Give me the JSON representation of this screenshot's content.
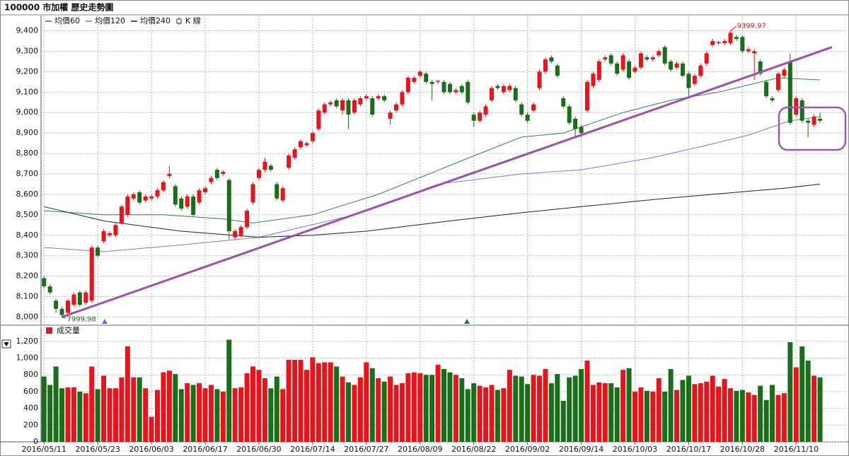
{
  "title": "100000 市加權  歷史走勢圖",
  "chart_data": [
    {
      "type": "candlestick",
      "legend": [
        {
          "name": "均價60",
          "color": "#2f7f5f"
        },
        {
          "name": "均價120",
          "color": "#7a78d8"
        },
        {
          "name": "均價240",
          "color": "#222222"
        },
        {
          "name": "K 線",
          "color": "#e8141b"
        }
      ],
      "up_color": "#e8141b",
      "down_color": "#1a6e1a",
      "xlim": [
        -0.5,
        134.5
      ],
      "ylim": [
        7960,
        9440
      ],
      "yticks": [
        {
          "value": 8000,
          "label": "8,000"
        },
        {
          "value": 8100,
          "label": "8,100"
        },
        {
          "value": 8200,
          "label": "8,200"
        },
        {
          "value": 8300,
          "label": "8,300"
        },
        {
          "value": 8400,
          "label": "8,400"
        },
        {
          "value": 8500,
          "label": "8,500"
        },
        {
          "value": 8600,
          "label": "8,600"
        },
        {
          "value": 8700,
          "label": "8,700"
        },
        {
          "value": 8800,
          "label": "8,800"
        },
        {
          "value": 8900,
          "label": "8,900"
        },
        {
          "value": 9000,
          "label": "9,000"
        },
        {
          "value": 9100,
          "label": "9,100"
        },
        {
          "value": 9200,
          "label": "9,200"
        },
        {
          "value": 9300,
          "label": "9,300"
        },
        {
          "value": 9400,
          "label": "9,400"
        }
      ],
      "grid": true,
      "annotate_extremes": true,
      "ohlc": [
        [
          8190,
          8200,
          8140,
          8150
        ],
        [
          8150,
          8160,
          8110,
          8120
        ],
        [
          8080,
          8090,
          8020,
          8040
        ],
        [
          8040,
          8050,
          7999.98,
          8010
        ],
        [
          8020,
          8090,
          8010,
          8080
        ],
        [
          8060,
          8120,
          8050,
          8110
        ],
        [
          8120,
          8130,
          8050,
          8060
        ],
        [
          8070,
          8130,
          8060,
          8120
        ],
        [
          8080,
          8350,
          8070,
          8340
        ],
        [
          8340,
          8350,
          8290,
          8300
        ],
        [
          8370,
          8430,
          8360,
          8420
        ],
        [
          8400,
          8420,
          8390,
          8410
        ],
        [
          8400,
          8460,
          8390,
          8450
        ],
        [
          8460,
          8550,
          8450,
          8540
        ],
        [
          8500,
          8600,
          8490,
          8590
        ],
        [
          8580,
          8610,
          8570,
          8600
        ],
        [
          8610,
          8620,
          8550,
          8560
        ],
        [
          8570,
          8600,
          8560,
          8590
        ],
        [
          8580,
          8600,
          8570,
          8590
        ],
        [
          8590,
          8630,
          8580,
          8620
        ],
        [
          8620,
          8670,
          8610,
          8660
        ],
        [
          8690,
          8740,
          8680,
          8700
        ],
        [
          8640,
          8650,
          8540,
          8550
        ],
        [
          8580,
          8590,
          8520,
          8530
        ],
        [
          8540,
          8600,
          8530,
          8590
        ],
        [
          8590,
          8600,
          8490,
          8500
        ],
        [
          8560,
          8630,
          8550,
          8620
        ],
        [
          8610,
          8640,
          8600,
          8630
        ],
        [
          8660,
          8690,
          8650,
          8680
        ],
        [
          8720,
          8730,
          8670,
          8680
        ],
        [
          8700,
          8720,
          8690,
          8710
        ],
        [
          8670,
          8680,
          8380,
          8420
        ],
        [
          8390,
          8430,
          8380,
          8420
        ],
        [
          8400,
          8450,
          8390,
          8440
        ],
        [
          8440,
          8530,
          8430,
          8520
        ],
        [
          8560,
          8660,
          8550,
          8650
        ],
        [
          8680,
          8730,
          8670,
          8720
        ],
        [
          8720,
          8780,
          8710,
          8760
        ],
        [
          8740,
          8750,
          8710,
          8720
        ],
        [
          8650,
          8660,
          8570,
          8580
        ],
        [
          8570,
          8640,
          8560,
          8630
        ],
        [
          8730,
          8800,
          8720,
          8790
        ],
        [
          8780,
          8830,
          8770,
          8820
        ],
        [
          8830,
          8870,
          8820,
          8860
        ],
        [
          8840,
          8860,
          8830,
          8850
        ],
        [
          8860,
          8910,
          8850,
          8900
        ],
        [
          8920,
          9020,
          8910,
          9010
        ],
        [
          9000,
          9050,
          8990,
          9040
        ],
        [
          9040,
          9060,
          9030,
          9050
        ],
        [
          9060,
          9070,
          9020,
          9030
        ],
        [
          9010,
          9070,
          8990,
          9060
        ],
        [
          9060,
          9070,
          8920,
          8990
        ],
        [
          9000,
          9070,
          8990,
          9060
        ],
        [
          9040,
          9080,
          9030,
          9070
        ],
        [
          9070,
          9090,
          9060,
          9080
        ],
        [
          9070,
          9080,
          8980,
          8990
        ],
        [
          9070,
          9090,
          9060,
          9080
        ],
        [
          9080,
          9090,
          9050,
          9060
        ],
        [
          8970,
          9010,
          8940,
          9000
        ],
        [
          9010,
          9050,
          9000,
          9040
        ],
        [
          9040,
          9110,
          9030,
          9100
        ],
        [
          9100,
          9180,
          9090,
          9170
        ],
        [
          9150,
          9180,
          9140,
          9170
        ],
        [
          9180,
          9210,
          9170,
          9200
        ],
        [
          9190,
          9200,
          9140,
          9150
        ],
        [
          9150,
          9160,
          9060,
          9140
        ],
        [
          9150,
          9160,
          9140,
          9155
        ],
        [
          9150,
          9160,
          9090,
          9100
        ],
        [
          9140,
          9150,
          9090,
          9100
        ],
        [
          9100,
          9120,
          9090,
          9110
        ],
        [
          9130,
          9140,
          9090,
          9100
        ],
        [
          9150,
          9160,
          9040,
          9050
        ],
        [
          8990,
          9000,
          8930,
          8960
        ],
        [
          8960,
          9010,
          8950,
          9000
        ],
        [
          8990,
          9040,
          8980,
          9030
        ],
        [
          9060,
          9130,
          9050,
          9120
        ],
        [
          9130,
          9140,
          9110,
          9120
        ],
        [
          9100,
          9140,
          9090,
          9130
        ],
        [
          9110,
          9140,
          9100,
          9130
        ],
        [
          9120,
          9130,
          9050,
          9060
        ],
        [
          9040,
          9050,
          8980,
          8990
        ],
        [
          8990,
          9000,
          8950,
          8960
        ],
        [
          9010,
          9050,
          9000,
          9040
        ],
        [
          9120,
          9210,
          9110,
          9200
        ],
        [
          9200,
          9270,
          9190,
          9260
        ],
        [
          9270,
          9280,
          9240,
          9250
        ],
        [
          9230,
          9240,
          9170,
          9180
        ],
        [
          9070,
          9080,
          9020,
          9030
        ],
        [
          9030,
          9040,
          8940,
          8950
        ],
        [
          8970,
          8980,
          8880,
          8920
        ],
        [
          8930,
          8940,
          8880,
          8900
        ],
        [
          9010,
          9160,
          9000,
          9150
        ],
        [
          9130,
          9200,
          9120,
          9190
        ],
        [
          9160,
          9260,
          9150,
          9250
        ],
        [
          9260,
          9280,
          9250,
          9270
        ],
        [
          9280,
          9290,
          9230,
          9240
        ],
        [
          9240,
          9250,
          9180,
          9190
        ],
        [
          9210,
          9290,
          9200,
          9280
        ],
        [
          9250,
          9260,
          9160,
          9170
        ],
        [
          9200,
          9230,
          9190,
          9220
        ],
        [
          9220,
          9300,
          9210,
          9290
        ],
        [
          9270,
          9280,
          9250,
          9260
        ],
        [
          9260,
          9280,
          9250,
          9270
        ],
        [
          9280,
          9310,
          9270,
          9300
        ],
        [
          9320,
          9330,
          9230,
          9240
        ],
        [
          9250,
          9260,
          9200,
          9210
        ],
        [
          9220,
          9250,
          9210,
          9240
        ],
        [
          9240,
          9250,
          9170,
          9180
        ],
        [
          9190,
          9200,
          9080,
          9120
        ],
        [
          9140,
          9190,
          9130,
          9180
        ],
        [
          9180,
          9240,
          9170,
          9230
        ],
        [
          9240,
          9300,
          9230,
          9290
        ],
        [
          9330,
          9360,
          9320,
          9350
        ],
        [
          9340,
          9350,
          9330,
          9345
        ],
        [
          9340,
          9360,
          9330,
          9350
        ],
        [
          9340,
          9399.97,
          9330,
          9390
        ],
        [
          9370,
          9380,
          9350,
          9360
        ],
        [
          9370,
          9380,
          9290,
          9300
        ],
        [
          9300,
          9320,
          9290,
          9310
        ],
        [
          9290,
          9310,
          9160,
          9300
        ],
        [
          9250,
          9260,
          9180,
          9190
        ],
        [
          9150,
          9160,
          9070,
          9080
        ],
        [
          9070,
          9080,
          9050,
          9060
        ],
        [
          9110,
          9200,
          9100,
          9190
        ],
        [
          9180,
          9220,
          9170,
          9210
        ],
        [
          9250,
          9290,
          8940,
          8950
        ],
        [
          8990,
          9080,
          8980,
          9070
        ],
        [
          9060,
          9070,
          8950,
          8960
        ],
        [
          8960,
          8970,
          8880,
          8950
        ],
        [
          8940,
          8990,
          8930,
          8980
        ],
        [
          8970,
          9000,
          8950,
          8960
        ]
      ],
      "series": [
        {
          "name": "均價60",
          "color": "#2f7f5f",
          "x": [
            0,
            10,
            20,
            30,
            35,
            45,
            56,
            73,
            80,
            87,
            97,
            105,
            113,
            123,
            130
          ],
          "values": [
            8520,
            8500,
            8500,
            8480,
            8460,
            8500,
            8600,
            8800,
            8880,
            8900,
            9000,
            9060,
            9100,
            9170,
            9160
          ]
        },
        {
          "name": "均價120",
          "color": "#7a78d8",
          "x": [
            0,
            10,
            22,
            36,
            52,
            66,
            80,
            90,
            102,
            111,
            118,
            125,
            130
          ],
          "values": [
            8340,
            8320,
            8350,
            8390,
            8500,
            8650,
            8700,
            8720,
            8780,
            8840,
            8890,
            8960,
            8980
          ]
        },
        {
          "name": "均價240",
          "color": "#222222",
          "x": [
            0,
            10,
            23,
            36,
            45,
            54,
            68,
            80,
            90,
            104,
            116,
            124,
            130
          ],
          "values": [
            8540,
            8470,
            8420,
            8390,
            8400,
            8420,
            8470,
            8510,
            8540,
            8580,
            8610,
            8630,
            8650
          ]
        }
      ],
      "trendline": {
        "color": "#9b4fb0",
        "x": [
          3,
          132
        ],
        "values": [
          8000,
          9320
        ]
      }
    },
    {
      "type": "bar",
      "series": [
        {
          "name": "成交量",
          "color": "#e8141b",
          "values": [
            780,
            680,
            900,
            640,
            650,
            650,
            600,
            580,
            900,
            630,
            790,
            640,
            640,
            770,
            1140,
            770,
            770,
            640,
            300,
            620,
            830,
            850,
            810,
            630,
            700,
            680,
            700,
            640,
            680,
            630,
            600,
            1220,
            640,
            650,
            820,
            900,
            860,
            760,
            640,
            780,
            630,
            980,
            980,
            980,
            860,
            1010,
            940,
            950,
            950,
            900,
            780,
            710,
            680,
            770,
            950,
            880,
            760,
            720,
            780,
            680,
            700,
            820,
            830,
            820,
            800,
            800,
            920,
            870,
            830,
            800,
            760,
            630,
            700,
            670,
            650,
            680,
            620,
            640,
            860,
            790,
            780,
            690,
            800,
            790,
            870,
            700,
            810,
            490,
            770,
            790,
            870,
            970,
            680,
            710,
            700,
            700,
            650,
            860,
            880,
            600,
            650,
            610,
            600,
            760,
            600,
            870,
            620,
            740,
            790,
            690,
            700,
            720,
            790,
            660,
            750,
            640,
            610,
            620,
            590,
            560,
            670,
            500,
            680,
            560,
            580,
            1190,
            890,
            1140,
            970,
            790,
            770
          ]
        }
      ],
      "ylim": [
        0,
        1300
      ],
      "yticks": [
        0,
        200,
        400,
        600,
        800,
        {
          "value": 1000,
          "label": "1,000"
        },
        {
          "value": 1200,
          "label": "1,200"
        }
      ],
      "xticks": [
        {
          "value": 0,
          "label": "2016/05/11"
        },
        {
          "value": 9,
          "label": "2016/05/23"
        },
        {
          "value": 18,
          "label": "2016/06/03"
        },
        {
          "value": 27,
          "label": "2016/06/17"
        },
        {
          "value": 36,
          "label": "2016/06/30"
        },
        {
          "value": 45,
          "label": "2016/07/14"
        },
        {
          "value": 54,
          "label": "2016/07/27"
        },
        {
          "value": 63,
          "label": "2016/08/09"
        },
        {
          "value": 72,
          "label": "2016/08/22"
        },
        {
          "value": 81,
          "label": "2016/09/02"
        },
        {
          "value": 90,
          "label": "2016/09/14"
        },
        {
          "value": 99,
          "label": "2016/10/03"
        },
        {
          "value": 108,
          "label": "2016/10/17"
        },
        {
          "value": 117,
          "label": "2016/10/28"
        },
        {
          "value": 126,
          "label": "2016/11/10"
        }
      ],
      "grid": true
    }
  ]
}
